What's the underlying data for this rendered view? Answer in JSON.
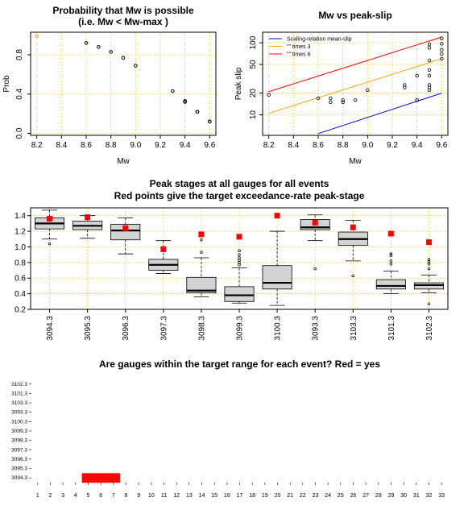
{
  "chart_data": [
    {
      "type": "scatter",
      "title_lines": [
        "Probability that Mw is possible",
        "(i.e. Mw < Mw-max )"
      ],
      "xlabel": "Mw",
      "ylabel": "Prob",
      "xlim": [
        8.15,
        9.65
      ],
      "ylim": [
        -0.02,
        1.03
      ],
      "xticks": [
        "8.2",
        "8.4",
        "8.6",
        "8.8",
        "9.0",
        "9.2",
        "9.4",
        "9.6"
      ],
      "yticks": [
        "0.0",
        "0.4",
        "0.8"
      ],
      "grid": true,
      "highlight_color": "#FFA500",
      "x": [
        8.2,
        8.6,
        8.7,
        8.8,
        8.9,
        9.0,
        9.3,
        9.4,
        9.4,
        9.5,
        9.5,
        9.6,
        9.6
      ],
      "y": [
        0.99,
        0.92,
        0.88,
        0.83,
        0.77,
        0.69,
        0.43,
        0.33,
        0.32,
        0.22,
        0.22,
        0.12,
        0.12
      ]
    },
    {
      "type": "scatter",
      "title": "Mw vs peak-slip",
      "xlabel": "Mw",
      "ylabel": "Peak slip",
      "log_y": true,
      "xlim": [
        8.15,
        9.65
      ],
      "ylim": [
        5.2,
        140
      ],
      "xticks": [
        "8.2",
        "8.4",
        "8.6",
        "8.8",
        "9.0",
        "9.2",
        "9.4",
        "9.6"
      ],
      "yticks": [
        "10",
        "20",
        "50",
        "100"
      ],
      "grid": true,
      "legend": {
        "position": "top-left",
        "entries": [
          {
            "label": "Scaling-relation mean-slip",
            "color": "#0000FF"
          },
          {
            "label": "\"\" times 3",
            "color": "#FFA500"
          },
          {
            "label": "\"\" times 6",
            "color": "#FF0000"
          }
        ]
      },
      "lines": [
        {
          "color": "#0000FF",
          "x": [
            8.6,
            9.6
          ],
          "y": [
            5.5,
            20.0
          ]
        },
        {
          "color": "#FFA500",
          "x": [
            8.2,
            9.6
          ],
          "y": [
            10.5,
            60.0
          ]
        },
        {
          "color": "#FF0000",
          "x": [
            8.2,
            9.6
          ],
          "y": [
            21.0,
            120.0
          ]
        }
      ],
      "x": [
        8.2,
        8.6,
        8.7,
        8.7,
        8.8,
        8.8,
        8.9,
        9.0,
        9.3,
        9.3,
        9.4,
        9.4,
        9.4,
        9.5,
        9.5,
        9.5,
        9.5,
        9.5,
        9.5,
        9.5,
        9.5,
        9.6,
        9.6,
        9.6,
        9.6,
        9.6
      ],
      "y": [
        19,
        17,
        15,
        17,
        15,
        16,
        16,
        22,
        24,
        26,
        35,
        16,
        16,
        95,
        85,
        57,
        42,
        35,
        26,
        24,
        22,
        115,
        97,
        80,
        70,
        60
      ]
    },
    {
      "type": "box",
      "title_lines": [
        "Peak stages at all gauges for all events",
        "Red points give the target exceedance-rate peak-stage"
      ],
      "ylim": [
        0.2,
        1.5
      ],
      "yticks": [
        "0.2",
        "0.4",
        "0.6",
        "0.8",
        "1.0",
        "1.2",
        "1.4"
      ],
      "grid": true,
      "box_color": "#D3D3D3",
      "target_color": "#FF0000",
      "categories": [
        "3094.3",
        "3095.3",
        "3096.3",
        "3097.3",
        "3098.3",
        "3099.3",
        "3100.3",
        "3093.3",
        "3103.3",
        "3101.3",
        "3102.3"
      ],
      "stats": [
        {
          "min": 1.1,
          "q1": 1.23,
          "median": 1.3,
          "q3": 1.37,
          "max": 1.47,
          "outliers": [
            1.04
          ],
          "target": 1.36
        },
        {
          "min": 1.11,
          "q1": 1.22,
          "median": 1.27,
          "q3": 1.33,
          "max": 1.4,
          "outliers": [],
          "target": 1.38
        },
        {
          "min": 0.91,
          "q1": 1.09,
          "median": 1.21,
          "q3": 1.29,
          "max": 1.37,
          "outliers": [],
          "target": 1.24
        },
        {
          "min": 0.66,
          "q1": 0.7,
          "median": 0.77,
          "q3": 0.84,
          "max": 1.08,
          "outliers": [],
          "target": 0.97
        },
        {
          "min": 0.36,
          "q1": 0.41,
          "median": 0.44,
          "q3": 0.61,
          "max": 0.86,
          "outliers": [
            1.09,
            0.93
          ],
          "target": 1.16
        },
        {
          "min": 0.28,
          "q1": 0.3,
          "median": 0.38,
          "q3": 0.49,
          "max": 0.73,
          "outliers": [
            0.77,
            0.8,
            0.83,
            0.86,
            0.9,
            0.95
          ],
          "target": 1.13
        },
        {
          "min": 0.25,
          "q1": 0.46,
          "median": 0.54,
          "q3": 0.76,
          "max": 1.2,
          "outliers": [],
          "target": 1.4
        },
        {
          "min": 1.08,
          "q1": 1.22,
          "median": 1.25,
          "q3": 1.35,
          "max": 1.41,
          "outliers": [
            0.72
          ],
          "target": 1.31
        },
        {
          "min": 0.82,
          "q1": 1.02,
          "median": 1.1,
          "q3": 1.19,
          "max": 1.34,
          "outliers": [
            0.63
          ],
          "target": 1.25
        },
        {
          "min": 0.4,
          "q1": 0.46,
          "median": 0.5,
          "q3": 0.58,
          "max": 0.69,
          "outliers": [
            0.78,
            0.82,
            0.89,
            0.91
          ],
          "target": 1.17
        },
        {
          "min": 0.41,
          "q1": 0.46,
          "median": 0.51,
          "q3": 0.54,
          "max": 0.64,
          "outliers": [
            0.27,
            0.72,
            0.78,
            0.81,
            0.84
          ],
          "target": 1.06
        }
      ]
    },
    {
      "type": "heatmap",
      "title": "Are gauges within the target range for each event? Red = yes",
      "yes_color": "#FF0000",
      "no_color": "#FFFFFF",
      "x": [
        "1",
        "2",
        "3",
        "4",
        "5",
        "6",
        "7",
        "8",
        "9",
        "10",
        "11",
        "12",
        "13",
        "14",
        "15",
        "16",
        "17",
        "18",
        "19",
        "20",
        "21",
        "22",
        "23",
        "24",
        "25",
        "26",
        "27",
        "28",
        "29",
        "30",
        "31",
        "32",
        "33"
      ],
      "y": [
        "3094.3",
        "3095.3",
        "3096.3",
        "3097.3",
        "3098.3",
        "3099.3",
        "3100.3",
        "3093.3",
        "3103.3",
        "3101.3",
        "3102.3"
      ],
      "rows": [
        "000011100000000000000000000000000",
        "000000000000000000000000000000000",
        "000000000000000000000000000000000",
        "000000000000000000000000000000000",
        "000000000000000000000000000000000",
        "000000000000000000000000000000000",
        "000000000000000000000000000000000",
        "000000000000000000000000000000000",
        "000000000000000000000000000000000",
        "000000000000000000000000000000000",
        "000000000000000000000000000000000"
      ]
    }
  ]
}
